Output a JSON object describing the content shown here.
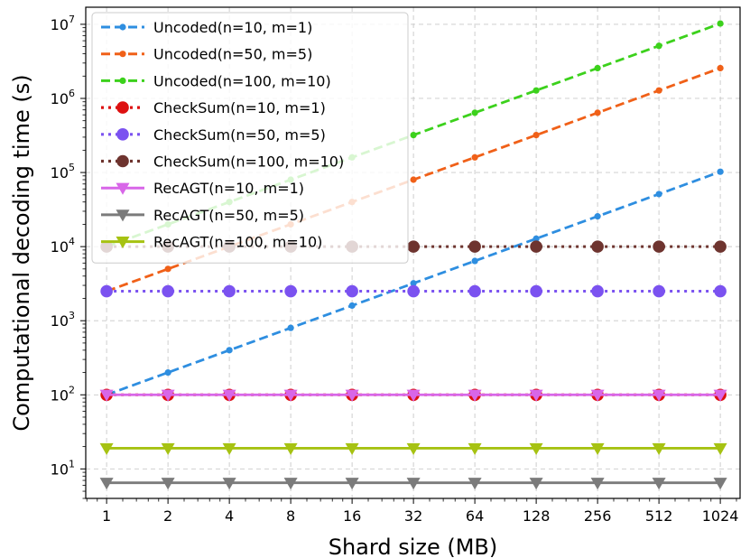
{
  "chart_data": {
    "type": "line",
    "title": "",
    "xlabel": "Shard size (MB)",
    "ylabel": "Computational decoding time (s)",
    "x_scale": "log2",
    "y_scale": "log10",
    "x": [
      1,
      2,
      4,
      8,
      16,
      32,
      64,
      128,
      256,
      512,
      1024
    ],
    "x_tick_labels": [
      "1",
      "2",
      "4",
      "8",
      "16",
      "32",
      "64",
      "128",
      "256",
      "512",
      "1024"
    ],
    "y_ticks": [
      {
        "value": 10,
        "base": "10",
        "exp": "1"
      },
      {
        "value": 100,
        "base": "10",
        "exp": "2"
      },
      {
        "value": 1000,
        "base": "10",
        "exp": "3"
      },
      {
        "value": 10000,
        "base": "10",
        "exp": "4"
      },
      {
        "value": 100000,
        "base": "10",
        "exp": "5"
      },
      {
        "value": 1000000,
        "base": "10",
        "exp": "6"
      },
      {
        "value": 10000000,
        "base": "10",
        "exp": "7"
      }
    ],
    "ylim": [
      4,
      17000000
    ],
    "xlim": [
      0.79,
      1280
    ],
    "grid": true,
    "legend_position": "top-left",
    "series": [
      {
        "name": "Uncoded(n=10, m=1)",
        "color": "#2e8ee0",
        "linestyle": "dashed",
        "marker": "dot-small",
        "values": [
          100,
          200,
          400,
          800,
          1600,
          3200,
          6400,
          12800,
          25600,
          51200,
          102400
        ]
      },
      {
        "name": "Uncoded(n=50, m=5)",
        "color": "#f06018",
        "linestyle": "dashed",
        "marker": "dot-small",
        "values": [
          2500,
          5000,
          10000,
          20000,
          40000,
          80000,
          160000,
          320000,
          640000,
          1280000,
          2560000
        ]
      },
      {
        "name": "Uncoded(n=100, m=10)",
        "color": "#3cd11c",
        "linestyle": "dashed",
        "marker": "dot-small",
        "values": [
          10000,
          20000,
          40000,
          80000,
          160000,
          320000,
          640000,
          1280000,
          2560000,
          5120000,
          10240000
        ]
      },
      {
        "name": "CheckSum(n=10, m=1)",
        "color": "#dd1010",
        "linestyle": "dotted",
        "marker": "dot-large",
        "values": [
          100,
          100,
          100,
          100,
          100,
          100,
          100,
          100,
          100,
          100,
          100
        ]
      },
      {
        "name": "CheckSum(n=50, m=5)",
        "color": "#7b52f0",
        "linestyle": "dotted",
        "marker": "dot-large",
        "values": [
          2500,
          2500,
          2500,
          2500,
          2500,
          2500,
          2500,
          2500,
          2500,
          2500,
          2500
        ]
      },
      {
        "name": "CheckSum(n=100, m=10)",
        "color": "#6e342f",
        "linestyle": "dotted",
        "marker": "dot-large",
        "values": [
          10000,
          10000,
          10000,
          10000,
          10000,
          10000,
          10000,
          10000,
          10000,
          10000,
          10000
        ]
      },
      {
        "name": "RecAGT(n=10, m=1)",
        "color": "#d866e8",
        "linestyle": "solid",
        "marker": "triangle-down",
        "values": [
          100,
          100,
          100,
          100,
          100,
          100,
          100,
          100,
          100,
          100,
          100
        ]
      },
      {
        "name": "RecAGT(n=50, m=5)",
        "color": "#7b7b7b",
        "linestyle": "solid",
        "marker": "triangle-down",
        "values": [
          6.5,
          6.5,
          6.5,
          6.5,
          6.5,
          6.5,
          6.5,
          6.5,
          6.5,
          6.5,
          6.5
        ]
      },
      {
        "name": "RecAGT(n=100, m=10)",
        "color": "#a6c212",
        "linestyle": "solid",
        "marker": "triangle-down",
        "values": [
          19,
          19,
          19,
          19,
          19,
          19,
          19,
          19,
          19,
          19,
          19
        ]
      }
    ]
  }
}
